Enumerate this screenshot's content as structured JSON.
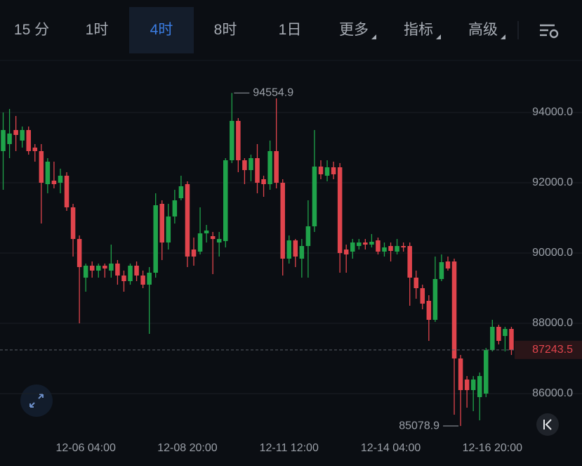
{
  "toolbar": {
    "tabs": [
      "15 分",
      "1时",
      "4时",
      "8时",
      "1日",
      "更多",
      "指标",
      "高级"
    ],
    "selected": 2,
    "dropdown": [
      5,
      6,
      7
    ]
  },
  "chart_data": {
    "type": "candlestick",
    "up_color": "#1fa34a",
    "down_color": "#e0444c",
    "grid": true,
    "categories": [
      null,
      null,
      null,
      null,
      null,
      null,
      null,
      null,
      null,
      null,
      null,
      null,
      null,
      "12-06 04:00",
      null,
      null,
      null,
      null,
      null,
      null,
      null,
      null,
      null,
      null,
      null,
      null,
      null,
      null,
      null,
      "12-08 20:00",
      null,
      null,
      null,
      null,
      null,
      null,
      null,
      null,
      null,
      null,
      null,
      null,
      null,
      null,
      null,
      "12-11 12:00",
      null,
      null,
      null,
      null,
      null,
      null,
      null,
      null,
      null,
      null,
      null,
      null,
      null,
      null,
      null,
      "12-14 04:00",
      null,
      null,
      null,
      null,
      null,
      null,
      null,
      null,
      null,
      null,
      null,
      null,
      null,
      null,
      null,
      "12-16 20:00",
      null,
      null,
      null
    ],
    "open": [
      92900,
      93100,
      93500,
      93200,
      93500,
      93000,
      92900,
      91960,
      92060,
      92000,
      92200,
      91300,
      90400,
      89300,
      89640,
      89500,
      89640,
      89500,
      89700,
      89360,
      89200,
      89640,
      89360,
      89100,
      89440,
      91400,
      90300,
      91040,
      91560,
      91960,
      90100,
      90040,
      90560,
      90480,
      90300,
      90340,
      92640,
      93760,
      92640,
      92360,
      92700,
      92100,
      91960,
      92900,
      92000,
      89840,
      90360,
      89840,
      90200,
      90760,
      92460,
      92200,
      92440,
      92440,
      90100,
      90040,
      90200,
      90300,
      90240,
      90360,
      90040,
      90200,
      90040,
      90200,
      90200,
      89300,
      89000,
      88640,
      88100,
      89260,
      89760,
      89760,
      87000,
      86400,
      86100,
      85900,
      86000,
      87240,
      87900,
      87640,
      87840
    ],
    "high": [
      94000,
      94100,
      93900,
      93600,
      93600,
      93100,
      93100,
      92700,
      92600,
      92400,
      92300,
      91400,
      90500,
      89700,
      89760,
      89700,
      89700,
      90240,
      89800,
      89500,
      89700,
      89760,
      89500,
      89600,
      91700,
      91500,
      91400,
      91800,
      92200,
      92040,
      90440,
      91300,
      90800,
      90600,
      90600,
      92700,
      94554.9,
      93840,
      92700,
      92800,
      93100,
      92200,
      93200,
      94400,
      92100,
      90500,
      90400,
      90400,
      91500,
      93500,
      92640,
      92640,
      92600,
      92560,
      90240,
      90400,
      90400,
      90400,
      90540,
      90440,
      90300,
      90300,
      90400,
      90300,
      90300,
      89500,
      89100,
      88800,
      89900,
      89960,
      89900,
      89840,
      87100,
      86500,
      86500,
      86600,
      87300,
      88100,
      87960,
      87900,
      87900
    ],
    "low": [
      91800,
      92700,
      92900,
      93000,
      92800,
      92600,
      90840,
      91700,
      91840,
      91700,
      91200,
      89900,
      88000,
      88900,
      89300,
      89300,
      89300,
      89300,
      89100,
      88900,
      89100,
      89200,
      89000,
      87700,
      89300,
      89800,
      90100,
      90840,
      91500,
      89600,
      89640,
      89960,
      90300,
      89400,
      89900,
      90160,
      92560,
      92300,
      91960,
      92040,
      91700,
      91600,
      91800,
      91840,
      89360,
      89700,
      89600,
      89300,
      89300,
      90600,
      92100,
      92040,
      92100,
      89440,
      89440,
      89840,
      90100,
      90100,
      90160,
      89960,
      89900,
      89760,
      89960,
      90040,
      88500,
      88700,
      88400,
      87500,
      88040,
      89200,
      89500,
      85400,
      85078.9,
      85600,
      85500,
      85240,
      85900,
      87200,
      87400,
      87200,
      87100
    ],
    "close": [
      93500,
      93400,
      93360,
      93500,
      92900,
      92900,
      92000,
      92600,
      91960,
      92200,
      91300,
      90400,
      89600,
      89640,
      89500,
      89640,
      89560,
      89700,
      89360,
      89200,
      89640,
      89360,
      89100,
      89440,
      91360,
      90300,
      91040,
      91500,
      91900,
      89900,
      89900,
      90560,
      90640,
      90400,
      90400,
      92640,
      93760,
      92640,
      92360,
      92700,
      92000,
      91960,
      92900,
      92000,
      89840,
      90360,
      89900,
      90200,
      90760,
      92460,
      92240,
      92440,
      92240,
      90000,
      89960,
      90300,
      90300,
      90240,
      90320,
      90040,
      90160,
      90060,
      90200,
      90160,
      89300,
      89000,
      88560,
      88100,
      89260,
      89740,
      89560,
      87000,
      86100,
      86100,
      86400,
      86500,
      87240,
      87900,
      87500,
      87840,
      87243.5
    ],
    "ylim": [
      84800,
      95600
    ],
    "yticks": [
      {
        "value": 86000,
        "label": "86000.0"
      },
      {
        "value": 88000,
        "label": "88000.0"
      },
      {
        "value": 90000,
        "label": "90000.0"
      },
      {
        "value": 92000,
        "label": "92000.0"
      },
      {
        "value": 94000,
        "label": "94000.0"
      }
    ]
  }
}
